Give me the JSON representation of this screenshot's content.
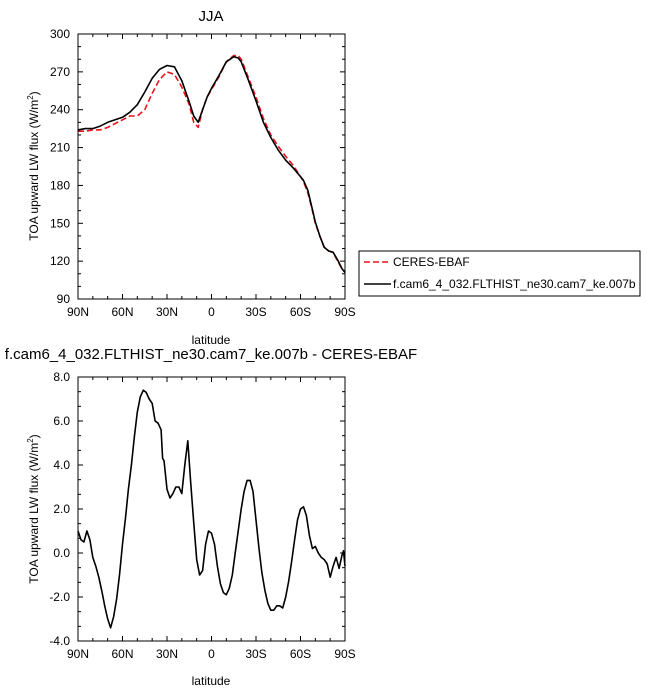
{
  "chart_data": [
    {
      "type": "line",
      "title": "JJA",
      "xlabel": "latitude",
      "ylabel": "TOA upward LW flux (W/m²)",
      "ylabel_main": "TOA upward LW flux (W/m",
      "ylabel_sup": "2",
      "ylabel_tail": ")",
      "xlim": [
        -90,
        90
      ],
      "ylim": [
        90,
        300
      ],
      "xticks": [
        {
          "value": -90,
          "label": "90N"
        },
        {
          "value": -60,
          "label": "60N"
        },
        {
          "value": -30,
          "label": "30N"
        },
        {
          "value": 0,
          "label": "0"
        },
        {
          "value": 30,
          "label": "30S"
        },
        {
          "value": 60,
          "label": "60S"
        },
        {
          "value": 90,
          "label": "90S"
        }
      ],
      "yticks": [
        {
          "value": 90,
          "label": "90"
        },
        {
          "value": 120,
          "label": "120"
        },
        {
          "value": 150,
          "label": "150"
        },
        {
          "value": 180,
          "label": "180"
        },
        {
          "value": 210,
          "label": "210"
        },
        {
          "value": 240,
          "label": "240"
        },
        {
          "value": 270,
          "label": "270"
        },
        {
          "value": 300,
          "label": "300"
        }
      ],
      "legend_position": "right, below plot middle",
      "series": [
        {
          "name": "CERES-EBAF",
          "color": "#e8141b",
          "dash": "dashed",
          "x": [
            -90,
            -85,
            -80,
            -75,
            -70,
            -65,
            -60,
            -55,
            -50,
            -45,
            -40,
            -35,
            -30,
            -25,
            -20,
            -15,
            -12,
            -9,
            -6,
            -3,
            0,
            5,
            10,
            15,
            18,
            20,
            25,
            30,
            35,
            40,
            45,
            50,
            55,
            60,
            62,
            65,
            68,
            70,
            73,
            76,
            79,
            82,
            85,
            88,
            90
          ],
          "values": [
            223,
            223,
            224,
            224,
            226,
            229,
            232,
            235,
            235,
            240,
            253,
            264,
            270,
            268,
            258,
            244,
            230,
            226,
            240,
            250,
            256,
            266,
            278,
            283,
            283,
            280,
            265,
            250,
            233,
            220,
            211,
            203,
            196,
            187,
            183,
            174,
            160,
            150,
            140,
            131,
            128,
            127,
            120,
            114,
            112
          ]
        },
        {
          "name": "f.cam6_4_032.FLTHIST_ne30.cam7_ke.007b",
          "color": "#000000",
          "dash": "solid",
          "x": [
            -90,
            -85,
            -80,
            -75,
            -70,
            -65,
            -60,
            -55,
            -50,
            -45,
            -40,
            -35,
            -30,
            -25,
            -20,
            -15,
            -12,
            -9,
            -6,
            -3,
            0,
            5,
            10,
            15,
            18,
            20,
            25,
            30,
            35,
            40,
            45,
            50,
            55,
            60,
            62,
            65,
            68,
            70,
            73,
            76,
            79,
            82,
            85,
            88,
            90
          ],
          "values": [
            224,
            225,
            225,
            227,
            230,
            232,
            234,
            238,
            244,
            254,
            265,
            272,
            275,
            274,
            263,
            246,
            235,
            230,
            240,
            250,
            257,
            267,
            278,
            282,
            281,
            278,
            263,
            247,
            230,
            218,
            208,
            200,
            194,
            187,
            184,
            176,
            161,
            151,
            140,
            131,
            128,
            127,
            121,
            114,
            111
          ]
        }
      ]
    },
    {
      "type": "line",
      "title": "f.cam6_4_032.FLTHIST_ne30.cam7_ke.007b - CERES-EBAF",
      "xlabel": "latitude",
      "ylabel": "TOA upward LW flux (W/m²)",
      "ylabel_main": "TOA upward LW flux (W/m",
      "ylabel_sup": "2",
      "ylabel_tail": ")",
      "xlim": [
        -90,
        90
      ],
      "ylim": [
        -4,
        8
      ],
      "xticks": [
        {
          "value": -90,
          "label": "90N"
        },
        {
          "value": -60,
          "label": "60N"
        },
        {
          "value": -30,
          "label": "30N"
        },
        {
          "value": 0,
          "label": "0"
        },
        {
          "value": 30,
          "label": "30S"
        },
        {
          "value": 60,
          "label": "60S"
        },
        {
          "value": 90,
          "label": "90S"
        }
      ],
      "yticks": [
        {
          "value": -4,
          "label": "-4.0"
        },
        {
          "value": -2,
          "label": "-2.0"
        },
        {
          "value": 0,
          "label": "0.0"
        },
        {
          "value": 2,
          "label": "2.0"
        },
        {
          "value": 4,
          "label": "4.0"
        },
        {
          "value": 6,
          "label": "6.0"
        },
        {
          "value": 8,
          "label": "8.0"
        }
      ],
      "series": [
        {
          "color": "#000000",
          "dash": "solid",
          "x": [
            -90,
            -88,
            -86,
            -84,
            -82,
            -80,
            -78,
            -76,
            -74,
            -72,
            -70,
            -68,
            -66,
            -64,
            -62,
            -60,
            -58,
            -56,
            -54,
            -52,
            -50,
            -48,
            -46,
            -44,
            -42,
            -40,
            -38,
            -36,
            -34,
            -33,
            -32,
            -30,
            -28,
            -26,
            -24,
            -22,
            -20,
            -18,
            -16,
            -14,
            -12,
            -10,
            -8,
            -6,
            -4,
            -2,
            0,
            2,
            4,
            6,
            8,
            10,
            12,
            14,
            16,
            18,
            20,
            22,
            24,
            26,
            28,
            30,
            32,
            34,
            36,
            38,
            40,
            42,
            44,
            46,
            48,
            50,
            52,
            54,
            56,
            58,
            60,
            62,
            64,
            66,
            68,
            70,
            72,
            74,
            76,
            78,
            80,
            82,
            84,
            86,
            88,
            89,
            90
          ],
          "values": [
            1.0,
            0.6,
            0.5,
            1.0,
            0.6,
            -0.2,
            -0.6,
            -1.1,
            -1.7,
            -2.4,
            -3.0,
            -3.4,
            -2.9,
            -2.1,
            -1.0,
            0.4,
            1.6,
            2.9,
            4.0,
            5.3,
            6.4,
            7.1,
            7.4,
            7.3,
            7.0,
            6.8,
            6.0,
            5.9,
            5.6,
            4.3,
            4.2,
            2.9,
            2.5,
            2.7,
            3.0,
            3.0,
            2.7,
            4.0,
            5.1,
            3.2,
            1.4,
            -0.3,
            -1.0,
            -0.8,
            0.4,
            1.0,
            0.9,
            0.4,
            -0.6,
            -1.4,
            -1.8,
            -1.9,
            -1.6,
            -1.0,
            0.0,
            1.0,
            2.0,
            2.8,
            3.3,
            3.3,
            2.8,
            1.5,
            0.2,
            -0.9,
            -1.7,
            -2.3,
            -2.6,
            -2.6,
            -2.4,
            -2.4,
            -2.5,
            -2.0,
            -1.3,
            -0.4,
            0.6,
            1.5,
            2.0,
            2.1,
            1.7,
            0.8,
            0.2,
            0.3,
            0.0,
            -0.2,
            -0.3,
            -0.5,
            -1.1,
            -0.6,
            -0.2,
            -0.7,
            -0.1,
            0.1,
            -0.6
          ]
        }
      ]
    }
  ]
}
